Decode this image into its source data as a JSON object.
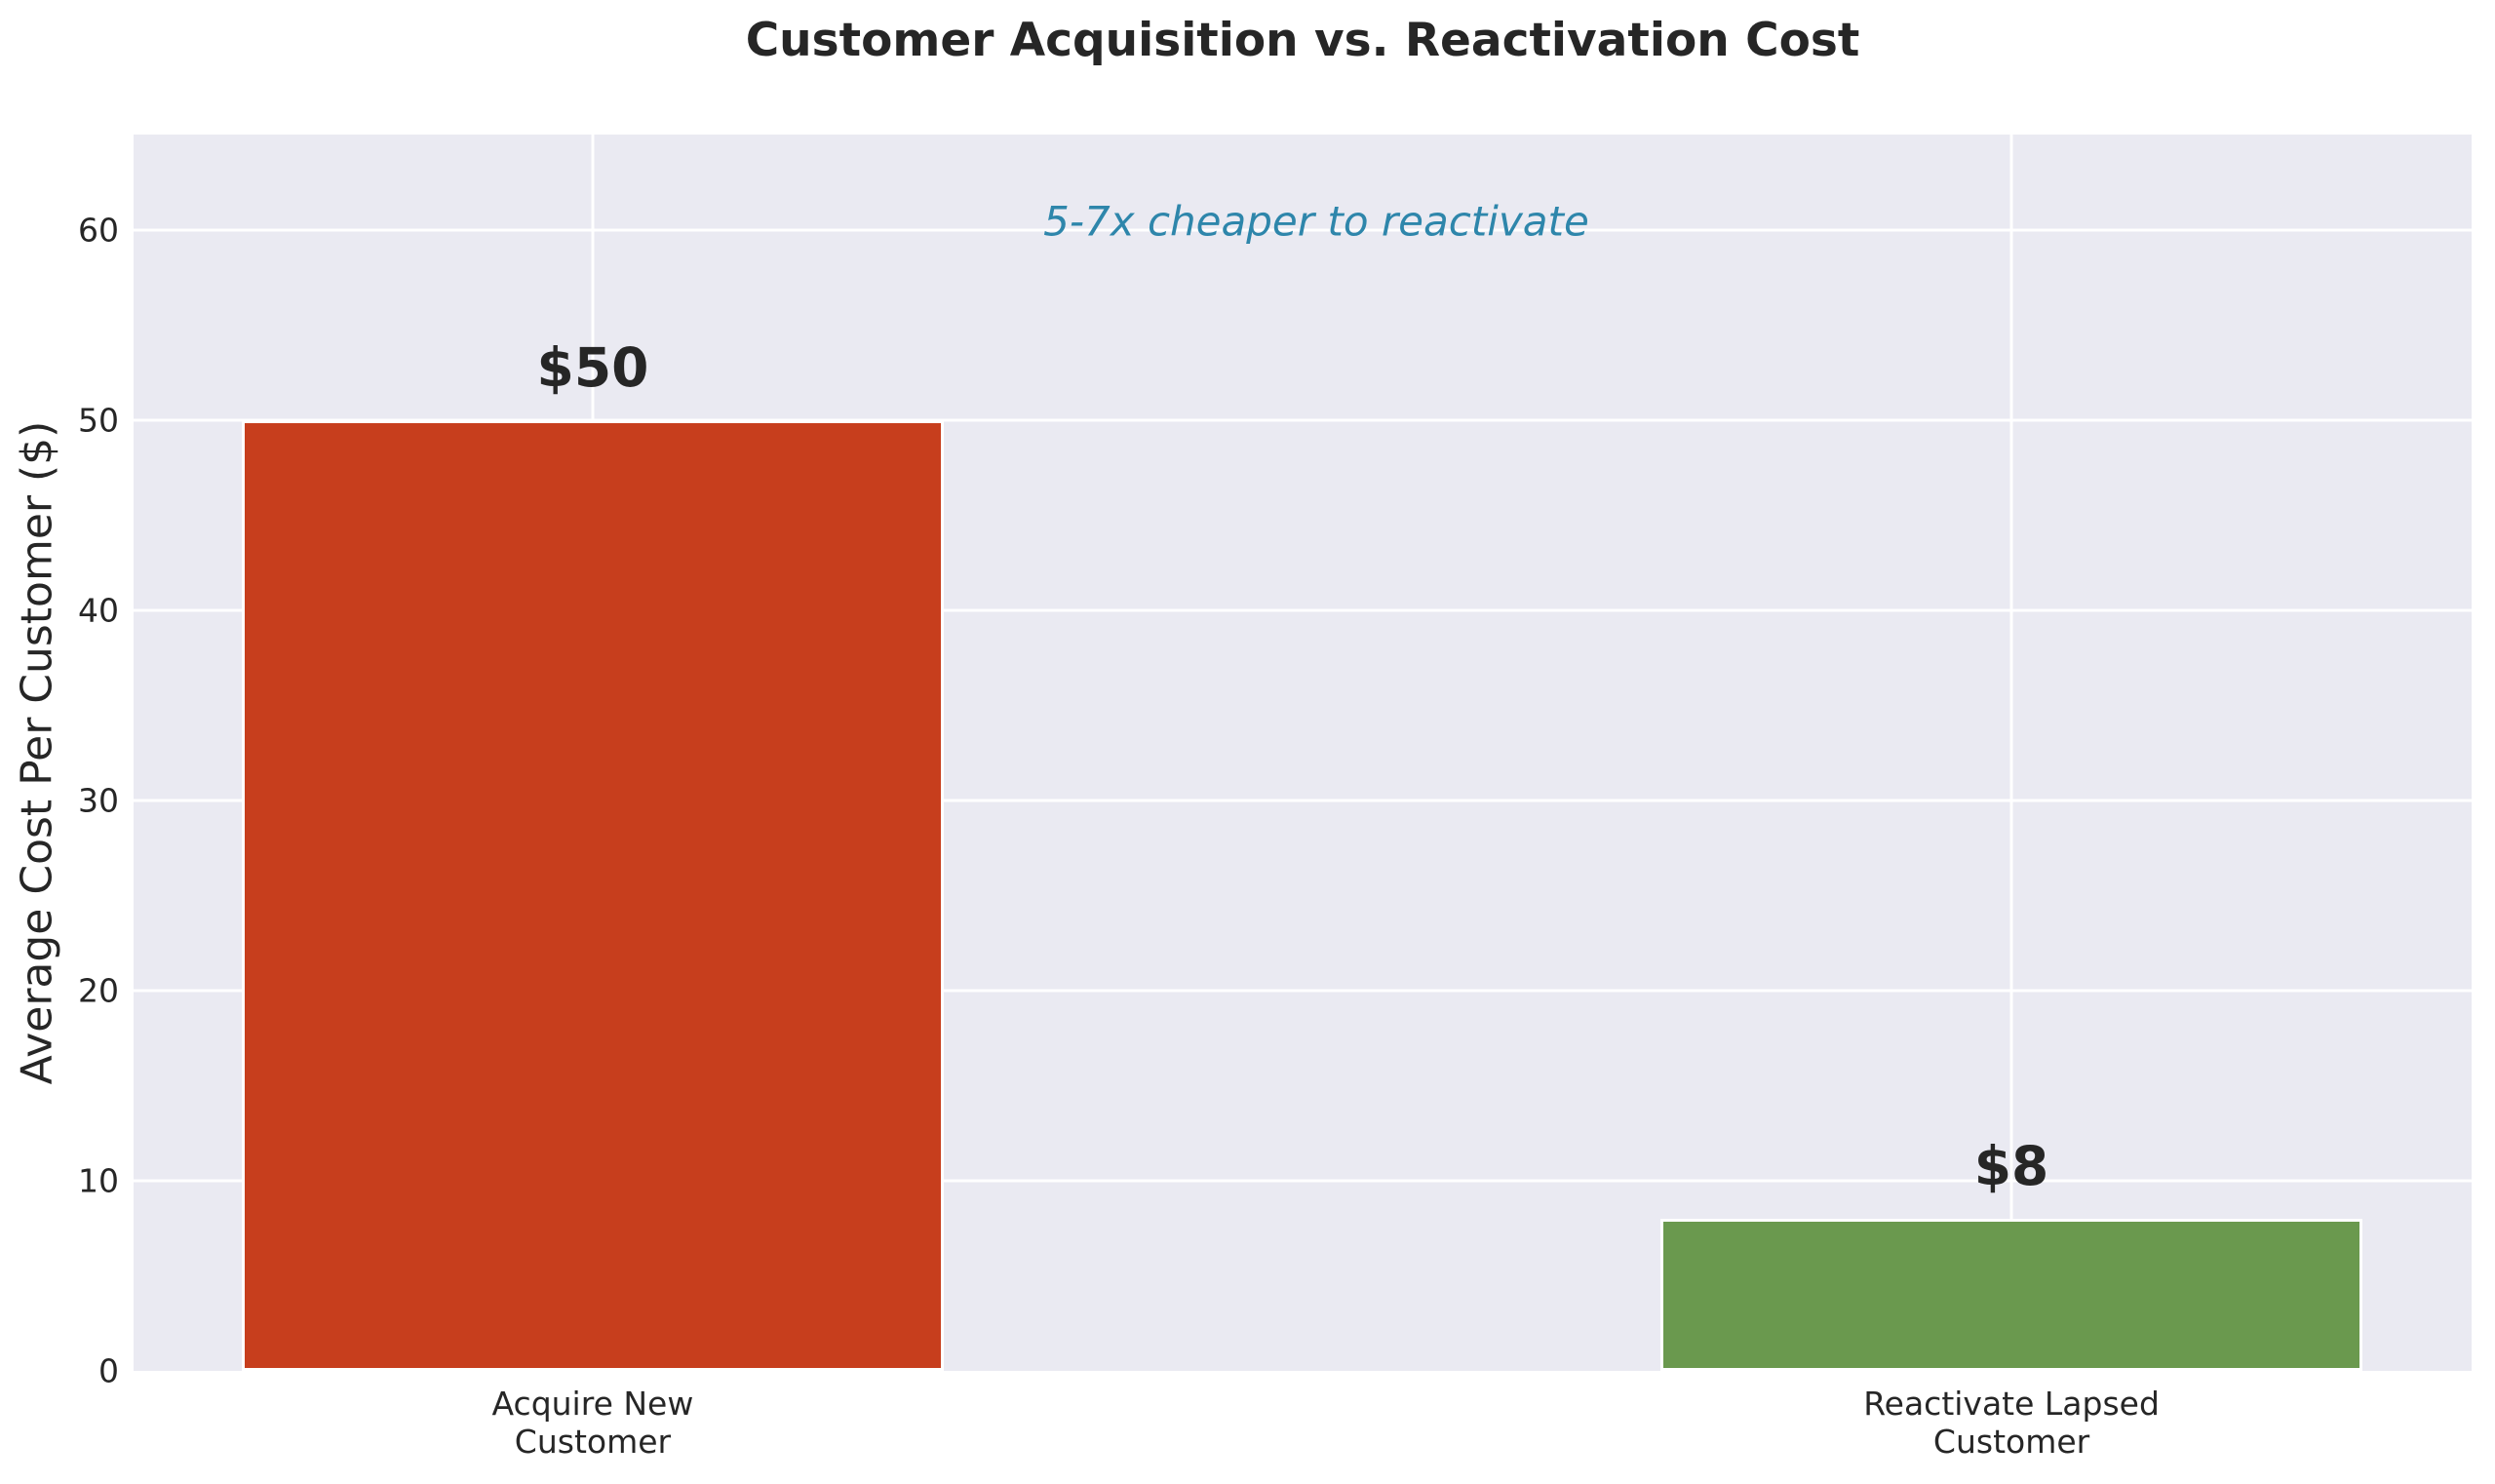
{
  "chart_data": {
    "type": "bar",
    "title": "Customer Acquisition vs. Reactivation Cost",
    "ylabel": "Average Cost Per Customer ($)",
    "xlabel": "",
    "categories": [
      "Acquire New\nCustomer",
      "Reactivate Lapsed\nCustomer"
    ],
    "values": [
      50,
      8
    ],
    "bar_labels": [
      "$50",
      "$8"
    ],
    "bar_colors": [
      "#C73E1D",
      "#6A994E"
    ],
    "yticks": [
      0,
      10,
      20,
      30,
      40,
      50,
      60
    ],
    "ylim": [
      0,
      65
    ],
    "grid": true,
    "legend_position": "none",
    "annotation": {
      "text": "5-7x cheaper to reactivate",
      "color": "#2E86AB"
    },
    "colors": {
      "plot_background": "#EAEAF2",
      "figure_background": "#FFFFFF",
      "gridline": "#FFFFFF",
      "text": "#262626"
    }
  }
}
